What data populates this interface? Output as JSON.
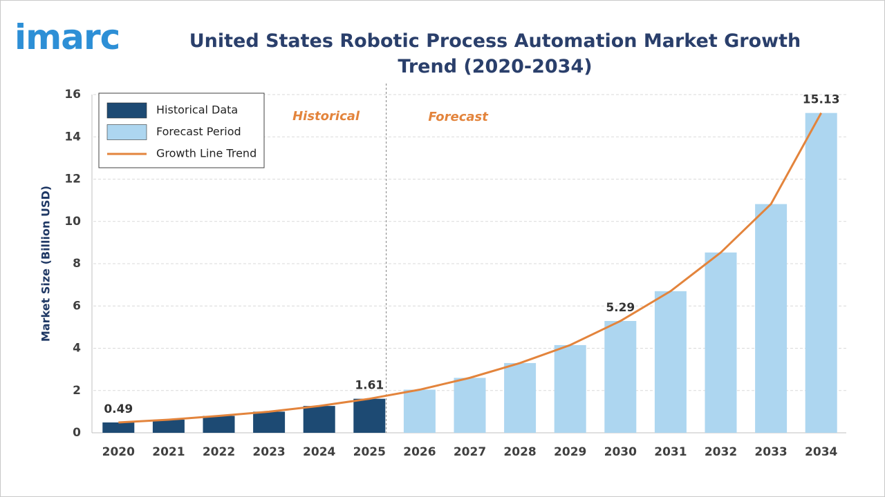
{
  "logo": "imarc",
  "chart_data": {
    "type": "bar",
    "title": "United States Robotic Process Automation Market Growth Trend (2020-2034)",
    "y_label": "Market Size (Billion USD)",
    "annotations": [
      "Historical",
      "Forecast"
    ],
    "categories": [
      "2020",
      "2021",
      "2022",
      "2023",
      "2024",
      "2025",
      "2026",
      "2027",
      "2028",
      "2029",
      "2030",
      "2031",
      "2032",
      "2033",
      "2034"
    ],
    "series": [
      {
        "name": "Historical Data",
        "type": "bar",
        "color": "#1d4a73",
        "values": [
          0.49,
          0.62,
          0.8,
          1.0,
          1.27,
          1.61,
          null,
          null,
          null,
          null,
          null,
          null,
          null,
          null,
          null
        ]
      },
      {
        "name": "Forecast Period",
        "type": "bar",
        "color": "#add6f0",
        "values": [
          null,
          null,
          null,
          null,
          null,
          null,
          2.04,
          2.6,
          3.3,
          4.15,
          5.29,
          6.7,
          8.53,
          10.82,
          15.13
        ]
      },
      {
        "name": "Growth Line Trend",
        "type": "line",
        "color": "#e3843c",
        "values": [
          0.49,
          0.62,
          0.8,
          1.0,
          1.27,
          1.61,
          2.04,
          2.6,
          3.3,
          4.15,
          5.29,
          6.7,
          8.53,
          10.82,
          15.13
        ],
        "value_labels": [
          "0.49",
          null,
          null,
          null,
          null,
          "1.61",
          null,
          null,
          null,
          null,
          "5.29",
          null,
          null,
          null,
          "15.13"
        ]
      }
    ],
    "ylim": [
      0,
      16
    ],
    "yticks": [
      0,
      2,
      4,
      6,
      8,
      10,
      12,
      14,
      16
    ],
    "grid": true,
    "legend": "top-left"
  }
}
